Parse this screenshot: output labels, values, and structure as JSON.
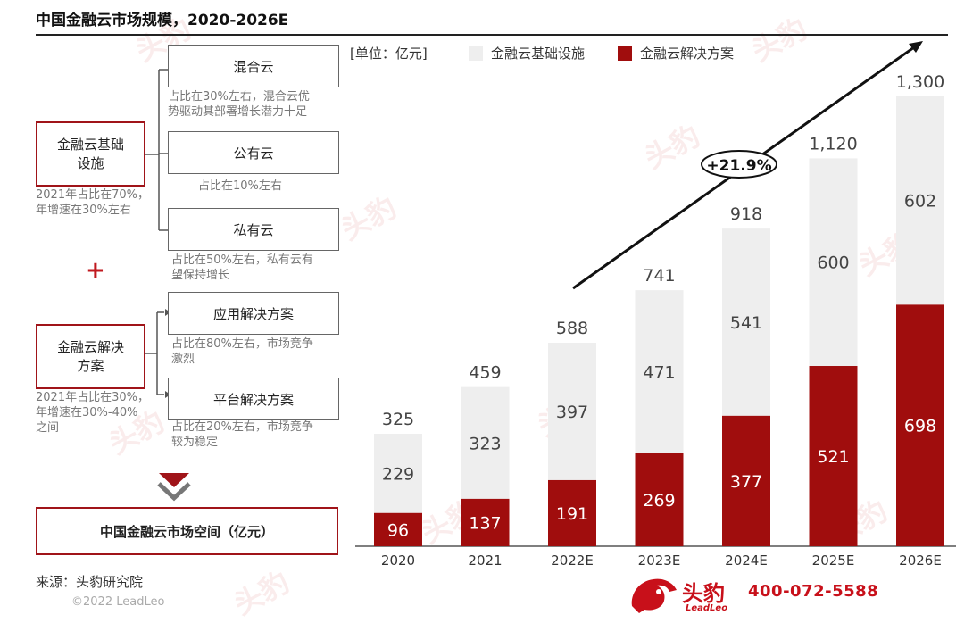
{
  "title": "中国金融云市场规模，2020-2026E",
  "left": {
    "infra_box": "金融云基础\n设施",
    "infra_note": "2021年占比在70%，\n年增速在30%左右",
    "solution_box": "金融云解决\n方案",
    "solution_note": "2021年占比在30%，\n年增速在30%-40%\n之间",
    "plus": "+",
    "infra_items": [
      {
        "label": "混合云",
        "note": "占比在30%左右，混合云优\n势驱动其部署增长潜力十足"
      },
      {
        "label": "公有云",
        "note": "占比在10%左右"
      },
      {
        "label": "私有云",
        "note": "占比在50%左右，私有云有\n望保持增长"
      }
    ],
    "solution_items": [
      {
        "label": "应用解决方案",
        "note": "占比在80%左右，市场竞争\n激烈"
      },
      {
        "label": "平台解决方案",
        "note": "占比在20%左右，市场竞争\n较为稳定"
      }
    ],
    "space_box": "中国金融云市场空间（亿元）"
  },
  "source": "来源：头豹研究院",
  "copyright": "©2022 LeadLeo",
  "brand": {
    "name": "头豹",
    "sub": "LeadLeo",
    "phone": "400-072-5588"
  },
  "watermark": "头豹",
  "colors": {
    "infra": "#eeeeee",
    "solution": "#a00d0d",
    "accent": "#a01419",
    "text": "#333333"
  },
  "chart_data": {
    "type": "bar",
    "stacked": true,
    "unit_label": "[单位：亿元]",
    "categories": [
      "2020",
      "2021",
      "2022E",
      "2023E",
      "2024E",
      "2025E",
      "2026E"
    ],
    "series": [
      {
        "name": "金融云解决方案",
        "values": [
          96,
          137,
          191,
          269,
          377,
          521,
          698
        ]
      },
      {
        "name": "金融云基础设施",
        "values": [
          229,
          323,
          397,
          471,
          541,
          600,
          602
        ]
      }
    ],
    "totals": [
      "325",
      "459",
      "588",
      "741",
      "918",
      "1,120",
      "1,300"
    ],
    "legend": [
      "金融云基础设施",
      "金融云解决方案"
    ],
    "legend_position": "top",
    "cagr_label": "+21.9%",
    "ylim": [
      0,
      1300
    ]
  }
}
